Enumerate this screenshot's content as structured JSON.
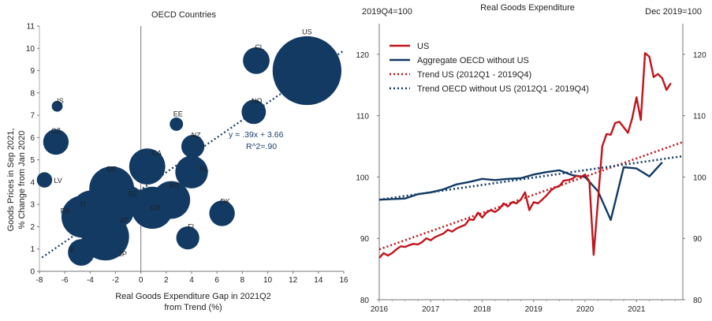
{
  "chart_data": [
    {
      "type": "scatter",
      "title": "OECD Countries",
      "xlabel": "Real Goods Expenditure Gap in 2021Q2 from Trend (%)",
      "xlabel_lines": [
        "Real Goods Expenditure Gap in 2021Q2",
        "from Trend (%)"
      ],
      "ylabel": "Goods Prices in Sep 2021, % Change from Jan 2020",
      "ylabel_lines": [
        "Goods Prices in Sep 2021,",
        "% Change from Jan 2020"
      ],
      "xlim": [
        -8,
        16
      ],
      "ylim": [
        0,
        11
      ],
      "xticks": [
        -8,
        -6,
        -4,
        -2,
        0,
        2,
        4,
        6,
        8,
        10,
        12,
        14,
        16
      ],
      "yticks": [
        0,
        1,
        2,
        3,
        4,
        5,
        6,
        7,
        8,
        9,
        10,
        11
      ],
      "bubble_color": "#123a63",
      "trend": {
        "slope": 0.39,
        "intercept": 3.66,
        "color": "#123a63"
      },
      "equation_lines": [
        "y = .39x + 3.66",
        "R^2=.90"
      ],
      "points": [
        {
          "label": "US",
          "x": 13.1,
          "y": 9.0,
          "size": 40
        },
        {
          "label": "CL",
          "x": 9.1,
          "y": 9.45,
          "size": 6
        },
        {
          "label": "NO",
          "x": 8.9,
          "y": 7.15,
          "size": 5
        },
        {
          "label": "IS",
          "x": -6.6,
          "y": 7.4,
          "size": 1
        },
        {
          "label": "EE",
          "x": 2.8,
          "y": 6.6,
          "size": 1.5
        },
        {
          "label": "CZ",
          "x": -6.7,
          "y": 5.8,
          "size": 5.5
        },
        {
          "label": "NZ",
          "x": 4.1,
          "y": 5.6,
          "size": 4.5
        },
        {
          "label": "CA",
          "x": 0.5,
          "y": 4.7,
          "size": 11
        },
        {
          "label": "NL",
          "x": 4.0,
          "y": 4.45,
          "size": 9
        },
        {
          "label": "DE",
          "x": -2.3,
          "y": 3.7,
          "size": 17
        },
        {
          "label": "LV",
          "x": -7.6,
          "y": 4.1,
          "size": 2
        },
        {
          "label": "KR",
          "x": 2.4,
          "y": 3.2,
          "size": 12
        },
        {
          "label": "SE",
          "x": -0.9,
          "y": 3.2,
          "size": 6.5
        },
        {
          "label": "GB",
          "x": 0.9,
          "y": 2.85,
          "size": 15
        },
        {
          "label": "IT",
          "x": -3.9,
          "y": 2.75,
          "size": 13
        },
        {
          "label": "AT",
          "x": -1.6,
          "y": 2.6,
          "size": 5.5
        },
        {
          "label": "DK",
          "x": 6.4,
          "y": 2.6,
          "size": 5.5
        },
        {
          "label": "FR",
          "x": -4.6,
          "y": 2.45,
          "size": 15
        },
        {
          "label": "FI",
          "x": 3.7,
          "y": 1.5,
          "size": 4.5
        },
        {
          "label": "JP",
          "x": -2.8,
          "y": 1.55,
          "size": 19
        },
        {
          "label": "IE",
          "x": -4.7,
          "y": 0.85,
          "size": 6
        }
      ]
    },
    {
      "type": "line",
      "title": "Real Goods Expenditure",
      "left_axis_label": "2019Q4=100",
      "right_axis_label": "Dec 2019=100",
      "xlim": [
        2016,
        2021.9
      ],
      "ylim": [
        80,
        125
      ],
      "xticks": [
        2016,
        2017,
        2018,
        2019,
        2020,
        2021
      ],
      "yticks": [
        80,
        90,
        100,
        110,
        120
      ],
      "series": [
        {
          "name": "US",
          "color": "#c0141b",
          "style": "solid",
          "x": [
            2016.0,
            2016.0833,
            2016.1667,
            2016.25,
            2016.3333,
            2016.4167,
            2016.5,
            2016.5833,
            2016.6667,
            2016.75,
            2016.8333,
            2016.9167,
            2017.0,
            2017.0833,
            2017.1667,
            2017.25,
            2017.3333,
            2017.4167,
            2017.5,
            2017.5833,
            2017.6667,
            2017.75,
            2017.8333,
            2017.9167,
            2018.0,
            2018.0833,
            2018.1667,
            2018.25,
            2018.3333,
            2018.4167,
            2018.5,
            2018.5833,
            2018.6667,
            2018.75,
            2018.8333,
            2018.9167,
            2019.0,
            2019.0833,
            2019.1667,
            2019.25,
            2019.3333,
            2019.4167,
            2019.5,
            2019.5833,
            2019.6667,
            2019.75,
            2019.8333,
            2019.9167,
            2020.0,
            2020.0833,
            2020.1667,
            2020.25,
            2020.3333,
            2020.4167,
            2020.5,
            2020.5833,
            2020.6667,
            2020.75,
            2020.8333,
            2020.9167,
            2021.0,
            2021.0833,
            2021.1667,
            2021.25,
            2021.3333,
            2021.4167,
            2021.5,
            2021.5833,
            2021.6667
          ],
          "values": [
            86.8,
            87.6,
            87.2,
            87.6,
            88.2,
            88.7,
            88.6,
            88.9,
            89.1,
            89.0,
            89.4,
            90.0,
            89.7,
            90.2,
            90.5,
            90.8,
            91.4,
            91.1,
            91.6,
            91.9,
            92.2,
            93.1,
            93.0,
            94.2,
            93.4,
            94.2,
            94.6,
            94.3,
            94.8,
            95.7,
            95.2,
            95.9,
            95.7,
            96.3,
            97.5,
            94.6,
            95.9,
            95.7,
            96.3,
            97.0,
            97.8,
            98.3,
            98.5,
            99.4,
            99.5,
            99.7,
            100.2,
            100.0,
            100.4,
            99.3,
            87.3,
            96.0,
            105.0,
            107.0,
            106.9,
            108.8,
            109.0,
            108.1,
            107.2,
            109.6,
            113.0,
            109.3,
            120.2,
            119.6,
            116.3,
            116.8,
            116.1,
            114.2,
            115.3
          ]
        },
        {
          "name": "Aggregate OECD without US",
          "color": "#123a63",
          "style": "solid",
          "x": [
            2016.0,
            2016.25,
            2016.5,
            2016.75,
            2017.0,
            2017.25,
            2017.5,
            2017.75,
            2018.0,
            2018.25,
            2018.5,
            2018.75,
            2019.0,
            2019.25,
            2019.5,
            2019.75,
            2020.0,
            2020.25,
            2020.5,
            2020.75,
            2021.0,
            2021.25,
            2021.5
          ],
          "values": [
            96.3,
            96.4,
            96.5,
            97.2,
            97.5,
            98.0,
            98.8,
            99.2,
            99.7,
            99.5,
            99.7,
            99.8,
            100.4,
            100.8,
            101.1,
            100.3,
            100.0,
            97.7,
            93.0,
            101.6,
            101.4,
            100.1,
            102.4
          ]
        },
        {
          "name": "Trend US (2012Q1 - 2019Q4)",
          "color": "#c0141b",
          "style": "dotted",
          "x": [
            2016.0,
            2021.9
          ],
          "values": [
            88.2,
            105.7
          ]
        },
        {
          "name": "Trend OECD without US (2012Q1 - 2019Q4)",
          "color": "#123a63",
          "style": "dotted",
          "x": [
            2016.0,
            2021.9
          ],
          "values": [
            96.3,
            103.4
          ]
        }
      ]
    }
  ]
}
